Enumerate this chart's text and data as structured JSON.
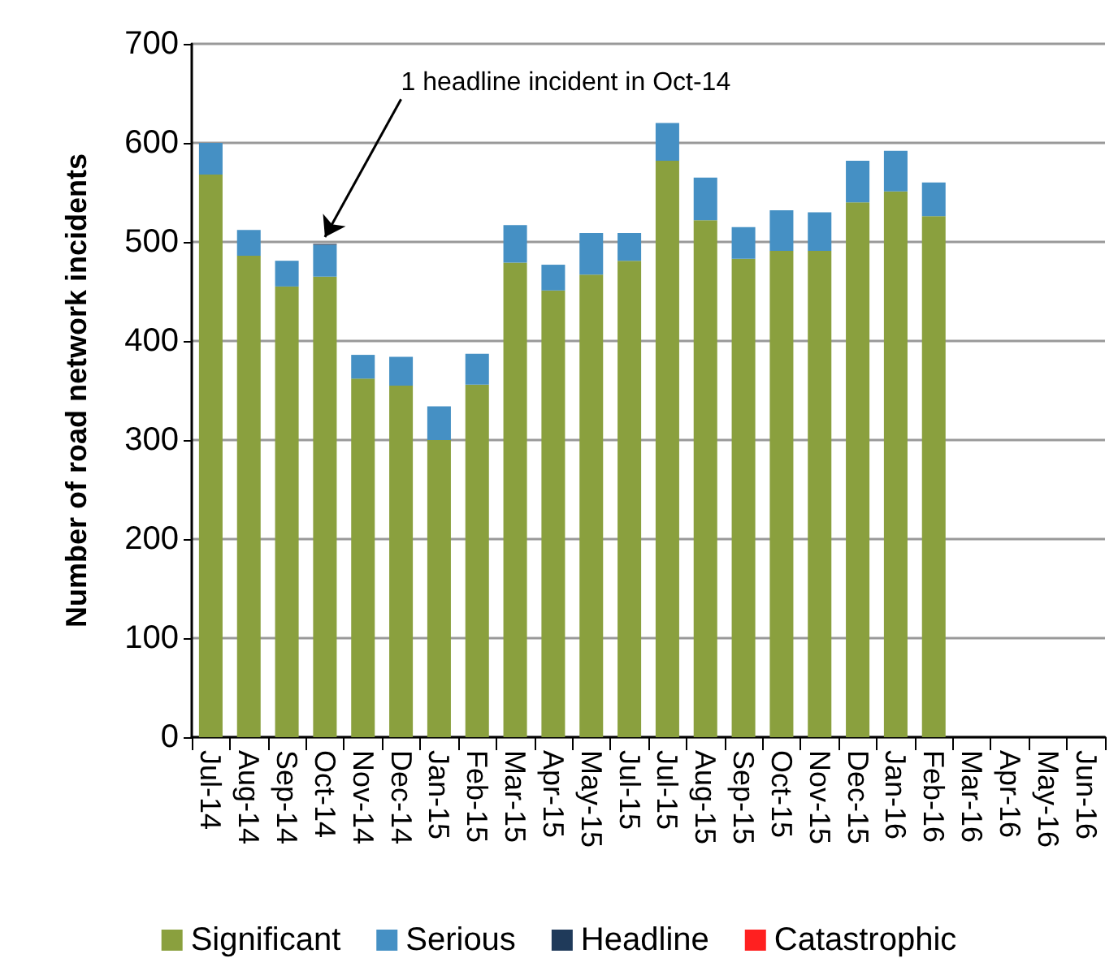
{
  "chart_data": {
    "type": "bar",
    "stacked": true,
    "ylabel": "Number of road network incidents",
    "categories": [
      "Jul-14",
      "Aug-14",
      "Sep-14",
      "Oct-14",
      "Nov-14",
      "Dec-14",
      "Jan-15",
      "Feb-15",
      "Mar-15",
      "Apr-15",
      "May-15",
      "Jul-15",
      "Jul-15",
      "Aug-15",
      "Sep-15",
      "Oct-15",
      "Nov-15",
      "Dec-15",
      "Jan-16",
      "Feb-16",
      "Mar-16",
      "Apr-16",
      "May-16",
      "Jun-16"
    ],
    "series": [
      {
        "name": "Significant",
        "color": "#8aa03e",
        "values": [
          568,
          486,
          455,
          465,
          362,
          355,
          300,
          356,
          479,
          451,
          467,
          481,
          582,
          522,
          483,
          491,
          491,
          540,
          551,
          526,
          null,
          null,
          null,
          null
        ]
      },
      {
        "name": "Serious",
        "color": "#4590c4",
        "values": [
          32,
          26,
          26,
          32,
          24,
          29,
          34,
          31,
          38,
          26,
          42,
          28,
          38,
          43,
          32,
          41,
          39,
          42,
          41,
          34,
          null,
          null,
          null,
          null
        ]
      },
      {
        "name": "Headline",
        "color": "#1f3a5a",
        "values": [
          null,
          null,
          null,
          1,
          null,
          null,
          null,
          null,
          null,
          null,
          null,
          null,
          null,
          null,
          null,
          null,
          null,
          null,
          null,
          null,
          null,
          null,
          null,
          null
        ]
      },
      {
        "name": "Catastrophic",
        "color": "#ff2020",
        "values": [
          null,
          null,
          null,
          null,
          null,
          null,
          null,
          null,
          null,
          null,
          null,
          null,
          null,
          null,
          null,
          null,
          null,
          null,
          null,
          null,
          null,
          null,
          null,
          null
        ]
      }
    ],
    "ylim": [
      0,
      700
    ],
    "yticks": [
      0,
      100,
      200,
      300,
      400,
      500,
      600,
      700
    ],
    "grid": "y",
    "legend": "bottom",
    "annotations": [
      {
        "text": "1 headline incident in Oct-14",
        "x": "Oct-14",
        "y": 499
      }
    ]
  }
}
